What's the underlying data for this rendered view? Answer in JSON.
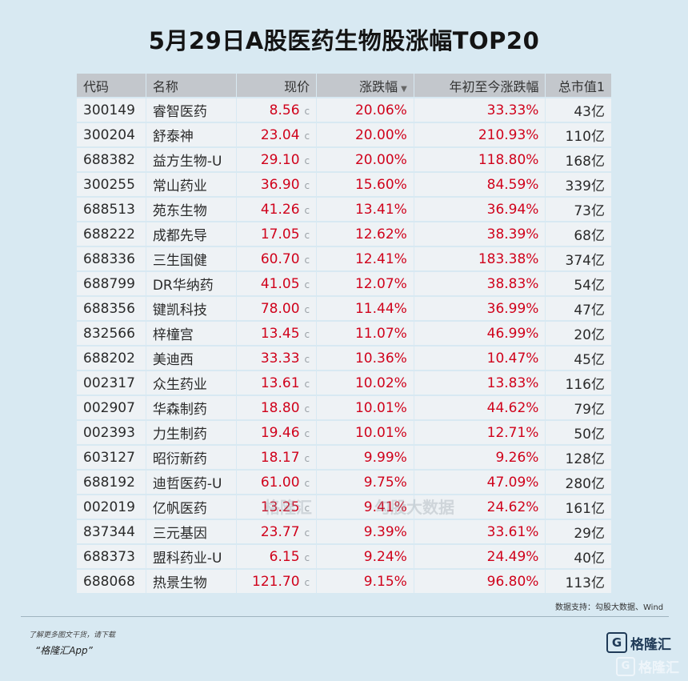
{
  "title": "5月29日A股医药生物股涨幅TOP20",
  "table": {
    "headers": {
      "code": "代码",
      "name": "名称",
      "price": "现价",
      "change": "涨跌幅",
      "ytd": "年初至今涨跌幅",
      "cap": "总市值1"
    },
    "sort_indicator": "▼",
    "price_marker": "c",
    "rows": [
      {
        "code": "300149",
        "name": "睿智医药",
        "price": "8.56",
        "change": "20.06%",
        "ytd": "33.33%",
        "cap": "43亿"
      },
      {
        "code": "300204",
        "name": "舒泰神",
        "price": "23.04",
        "change": "20.00%",
        "ytd": "210.93%",
        "cap": "110亿"
      },
      {
        "code": "688382",
        "name": "益方生物-U",
        "price": "29.10",
        "change": "20.00%",
        "ytd": "118.80%",
        "cap": "168亿"
      },
      {
        "code": "300255",
        "name": "常山药业",
        "price": "36.90",
        "change": "15.60%",
        "ytd": "84.59%",
        "cap": "339亿"
      },
      {
        "code": "688513",
        "name": "苑东生物",
        "price": "41.26",
        "change": "13.41%",
        "ytd": "36.94%",
        "cap": "73亿"
      },
      {
        "code": "688222",
        "name": "成都先导",
        "price": "17.05",
        "change": "12.62%",
        "ytd": "38.39%",
        "cap": "68亿"
      },
      {
        "code": "688336",
        "name": "三生国健",
        "price": "60.70",
        "change": "12.41%",
        "ytd": "183.38%",
        "cap": "374亿"
      },
      {
        "code": "688799",
        "name": "DR华纳药",
        "price": "41.05",
        "change": "12.07%",
        "ytd": "38.83%",
        "cap": "54亿"
      },
      {
        "code": "688356",
        "name": "键凯科技",
        "price": "78.00",
        "change": "11.44%",
        "ytd": "36.99%",
        "cap": "47亿"
      },
      {
        "code": "832566",
        "name": "梓橦宫",
        "price": "13.45",
        "change": "11.07%",
        "ytd": "46.99%",
        "cap": "20亿"
      },
      {
        "code": "688202",
        "name": "美迪西",
        "price": "33.33",
        "change": "10.36%",
        "ytd": "10.47%",
        "cap": "45亿"
      },
      {
        "code": "002317",
        "name": "众生药业",
        "price": "13.61",
        "change": "10.02%",
        "ytd": "13.83%",
        "cap": "116亿"
      },
      {
        "code": "002907",
        "name": "华森制药",
        "price": "18.80",
        "change": "10.01%",
        "ytd": "44.62%",
        "cap": "79亿"
      },
      {
        "code": "002393",
        "name": "力生制药",
        "price": "19.46",
        "change": "10.01%",
        "ytd": "12.71%",
        "cap": "50亿"
      },
      {
        "code": "603127",
        "name": "昭衍新药",
        "price": "18.17",
        "change": "9.99%",
        "ytd": "9.26%",
        "cap": "128亿"
      },
      {
        "code": "688192",
        "name": "迪哲医药-U",
        "price": "61.00",
        "change": "9.75%",
        "ytd": "47.09%",
        "cap": "280亿"
      },
      {
        "code": "002019",
        "name": "亿帆医药",
        "price": "13.25",
        "change": "9.41%",
        "ytd": "24.62%",
        "cap": "161亿"
      },
      {
        "code": "837344",
        "name": "三元基因",
        "price": "23.77",
        "change": "9.39%",
        "ytd": "33.61%",
        "cap": "29亿"
      },
      {
        "code": "688373",
        "name": "盟科药业-U",
        "price": "6.15",
        "change": "9.24%",
        "ytd": "24.49%",
        "cap": "40亿"
      },
      {
        "code": "688068",
        "name": "热景生物",
        "price": "121.70",
        "change": "9.15%",
        "ytd": "96.80%",
        "cap": "113亿"
      }
    ]
  },
  "source": "数据支持：勾股大数据、Wind",
  "footer": {
    "line1": "了解更多图文干货，请下载",
    "line2": "“格隆汇App”"
  },
  "watermark": {
    "left": "格隆汇",
    "right": "勾股大数据"
  },
  "brand": {
    "logo_letter": "G",
    "name": "格隆汇"
  },
  "colors": {
    "background": "#d8e9f2",
    "header_bg": "#c3c7cc",
    "row_bg": "#eef2f5",
    "up_red": "#d0021b"
  }
}
